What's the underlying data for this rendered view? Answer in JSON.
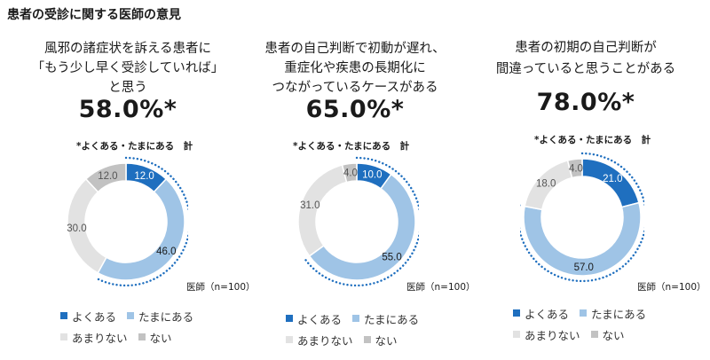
{
  "page_title": "患者の受診に関する医師の意見",
  "legend_labels": [
    "よくある",
    "たまにある",
    "あまりない",
    "ない"
  ],
  "colors": [
    "#1f6fbf",
    "#9fc4e6",
    "#e2e2e2",
    "#c2c2c2"
  ],
  "chart_data": [
    {
      "type": "pie",
      "question_lines": [
        "風邪の諸症状を訴える患者に",
        "「もう少し早く受診していれば」",
        "と思う"
      ],
      "headline": "58.0%*",
      "note": "*よくある・たまにある　計",
      "source": "医師（n=100）",
      "categories": [
        "よくある",
        "たまにある",
        "あまりない",
        "ない"
      ],
      "values": [
        12.0,
        46.0,
        30.0,
        12.0
      ],
      "labels": [
        "12.0",
        "46.0",
        "30.0",
        "12.0"
      ],
      "highlight_total": 58.0
    },
    {
      "type": "pie",
      "question_lines": [
        "患者の自己判断で初動が遅れ、",
        "重症化や疾患の長期化に",
        "つながっているケースがある"
      ],
      "headline": "65.0%*",
      "note": "*よくある・たまにある　計",
      "source": "医師（n=100）",
      "categories": [
        "よくある",
        "たまにある",
        "あまりない",
        "ない"
      ],
      "values": [
        10.0,
        55.0,
        31.0,
        4.0
      ],
      "labels": [
        "10.0",
        "55.0",
        "31.0",
        "4.0"
      ],
      "highlight_total": 65.0
    },
    {
      "type": "pie",
      "question_lines": [
        "患者の初期の自己判断が",
        "間違っていると思うことがある"
      ],
      "headline": "78.0%*",
      "note": "*よくある・たまにある　計",
      "source": "医師（n=100）",
      "categories": [
        "よくある",
        "たまにある",
        "あまりない",
        "ない"
      ],
      "values": [
        21.0,
        57.0,
        18.0,
        4.0
      ],
      "labels": [
        "21.0",
        "57.0",
        "18.0",
        "4.0"
      ],
      "highlight_total": 78.0
    }
  ]
}
